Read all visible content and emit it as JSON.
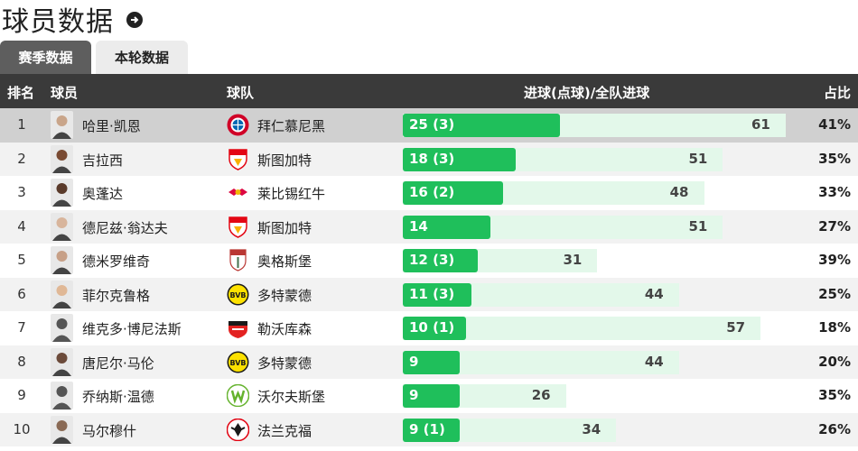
{
  "page": {
    "title": "球员数据"
  },
  "tabs": [
    {
      "label": "赛季数据",
      "active": true
    },
    {
      "label": "本轮数据",
      "active": false
    }
  ],
  "columns": {
    "rank": "排名",
    "player": "球员",
    "team": "球队",
    "goals": "进球(点球)/全队进球",
    "share": "占比"
  },
  "colors": {
    "bar": "#1fbf5b",
    "bar_track": "#e3f8ea",
    "header": "#3a3a3a"
  },
  "rows": [
    {
      "rank": "1",
      "player": "哈里·凯恩",
      "team": "拜仁慕尼黑",
      "goals_label": "25 (3)",
      "goals": 25,
      "team_total": 61,
      "team_total_label": "61",
      "share": "41%",
      "logo": "bayern-logo"
    },
    {
      "rank": "2",
      "player": "吉拉西",
      "team": "斯图加特",
      "goals_label": "18 (3)",
      "goals": 18,
      "team_total": 51,
      "team_total_label": "51",
      "share": "35%",
      "logo": "stuttgart-logo"
    },
    {
      "rank": "3",
      "player": "奥蓬达",
      "team": "莱比锡红牛",
      "goals_label": "16 (2)",
      "goals": 16,
      "team_total": 48,
      "team_total_label": "48",
      "share": "33%",
      "logo": "leipzig-logo"
    },
    {
      "rank": "4",
      "player": "德尼兹·翁达夫",
      "team": "斯图加特",
      "goals_label": "14",
      "goals": 14,
      "team_total": 51,
      "team_total_label": "51",
      "share": "27%",
      "logo": "stuttgart-logo"
    },
    {
      "rank": "5",
      "player": "德米罗维奇",
      "team": "奥格斯堡",
      "goals_label": "12 (3)",
      "goals": 12,
      "team_total": 31,
      "team_total_label": "31",
      "share": "39%",
      "logo": "augsburg-logo"
    },
    {
      "rank": "6",
      "player": "菲尔克鲁格",
      "team": "多特蒙德",
      "goals_label": "11 (3)",
      "goals": 11,
      "team_total": 44,
      "team_total_label": "44",
      "share": "25%",
      "logo": "dortmund-logo"
    },
    {
      "rank": "7",
      "player": "维克多·博尼法斯",
      "team": "勒沃库森",
      "goals_label": "10 (1)",
      "goals": 10,
      "team_total": 57,
      "team_total_label": "57",
      "share": "18%",
      "logo": "leverkusen-logo"
    },
    {
      "rank": "8",
      "player": "唐尼尔·马伦",
      "team": "多特蒙德",
      "goals_label": "9",
      "goals": 9,
      "team_total": 44,
      "team_total_label": "44",
      "share": "20%",
      "logo": "dortmund-logo"
    },
    {
      "rank": "9",
      "player": "乔纳斯·温德",
      "team": "沃尔夫斯堡",
      "goals_label": "9",
      "goals": 9,
      "team_total": 26,
      "team_total_label": "26",
      "share": "35%",
      "logo": "wolfsburg-logo"
    },
    {
      "rank": "10",
      "player": "马尔穆什",
      "team": "法兰克福",
      "goals_label": "9 (1)",
      "goals": 9,
      "team_total": 34,
      "team_total_label": "34",
      "share": "26%",
      "logo": "frankfurt-logo"
    }
  ]
}
